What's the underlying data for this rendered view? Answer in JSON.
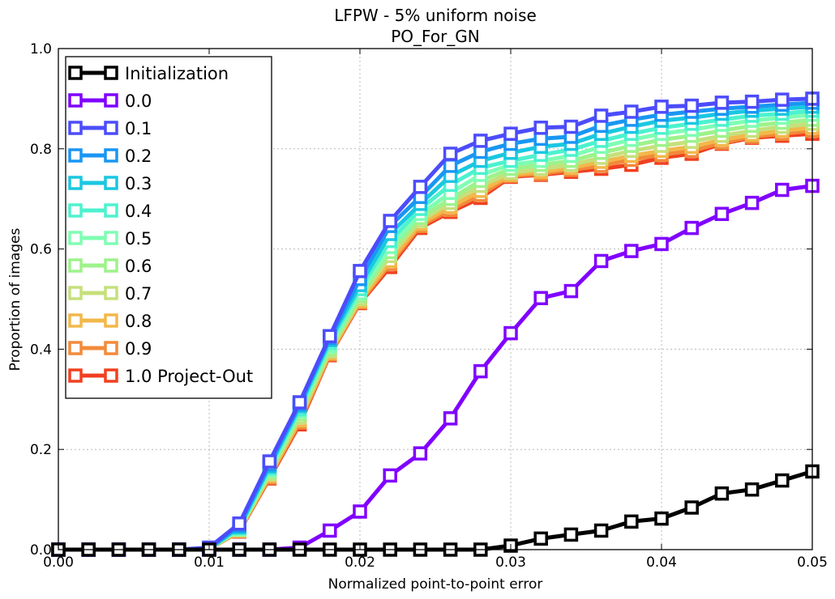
{
  "chart_data": {
    "type": "line",
    "title": "LFPW - 5% uniform noise",
    "subtitle": "PO_For_GN",
    "xlabel": "Normalized point-to-point error",
    "ylabel": "Proportion of images",
    "xlim": [
      0,
      0.05
    ],
    "ylim": [
      0,
      1.0
    ],
    "grid": true,
    "legend_position": "upper-left",
    "x_ticks": [
      "0.00",
      "0.01",
      "0.02",
      "0.03",
      "0.04",
      "0.05"
    ],
    "y_ticks": [
      "0.0",
      "0.2",
      "0.4",
      "0.6",
      "0.8",
      "1.0"
    ],
    "x": [
      0,
      0.002,
      0.004,
      0.006,
      0.008,
      0.01,
      0.012,
      0.014,
      0.016,
      0.018,
      0.02,
      0.022,
      0.024,
      0.026,
      0.028,
      0.03,
      0.032,
      0.034,
      0.036,
      0.038,
      0.04,
      0.042,
      0.044,
      0.046,
      0.048,
      0.05
    ],
    "series": [
      {
        "name": "Initialization",
        "color": "#000000",
        "values": [
          0,
          0,
          0,
          0,
          0,
          0,
          0,
          0,
          0,
          0,
          0,
          0,
          0,
          0,
          0,
          0.008,
          0.022,
          0.03,
          0.038,
          0.056,
          0.062,
          0.084,
          0.112,
          0.12,
          0.138,
          0.156
        ]
      },
      {
        "name": "0.0",
        "color": "#8000ff",
        "values": [
          0,
          0,
          0,
          0,
          0,
          0,
          0,
          0,
          0.004,
          0.038,
          0.076,
          0.148,
          0.192,
          0.262,
          0.356,
          0.432,
          0.502,
          0.516,
          0.576,
          0.596,
          0.61,
          0.642,
          0.67,
          0.692,
          0.718,
          0.726
        ]
      },
      {
        "name": "0.1",
        "color": "#4c4cfb",
        "values": [
          0,
          0,
          0,
          0,
          0,
          0.004,
          0.052,
          0.176,
          0.294,
          0.426,
          0.556,
          0.656,
          0.724,
          0.79,
          0.816,
          0.83,
          0.842,
          0.844,
          0.866,
          0.874,
          0.884,
          0.886,
          0.892,
          0.894,
          0.898,
          0.9
        ]
      },
      {
        "name": "0.2",
        "color": "#1996f3",
        "values": [
          0,
          0,
          0,
          0,
          0,
          0.003,
          0.048,
          0.17,
          0.29,
          0.422,
          0.54,
          0.646,
          0.704,
          0.766,
          0.794,
          0.81,
          0.82,
          0.824,
          0.846,
          0.858,
          0.868,
          0.874,
          0.88,
          0.884,
          0.888,
          0.892
        ]
      },
      {
        "name": "0.3",
        "color": "#1ac7e1",
        "values": [
          0,
          0,
          0,
          0,
          0,
          0.002,
          0.045,
          0.166,
          0.286,
          0.418,
          0.528,
          0.63,
          0.69,
          0.746,
          0.776,
          0.792,
          0.804,
          0.81,
          0.83,
          0.844,
          0.856,
          0.862,
          0.87,
          0.876,
          0.88,
          0.884
        ]
      },
      {
        "name": "0.4",
        "color": "#4cf2ce",
        "values": [
          0,
          0,
          0,
          0,
          0,
          0.002,
          0.043,
          0.162,
          0.28,
          0.412,
          0.52,
          0.616,
          0.68,
          0.728,
          0.762,
          0.776,
          0.788,
          0.798,
          0.816,
          0.83,
          0.842,
          0.85,
          0.858,
          0.866,
          0.87,
          0.876
        ]
      },
      {
        "name": "0.5",
        "color": "#7ffeb3",
        "values": [
          0,
          0,
          0,
          0,
          0,
          0.002,
          0.041,
          0.158,
          0.276,
          0.406,
          0.512,
          0.604,
          0.67,
          0.712,
          0.748,
          0.768,
          0.776,
          0.786,
          0.804,
          0.818,
          0.83,
          0.838,
          0.848,
          0.856,
          0.862,
          0.868
        ]
      },
      {
        "name": "0.6",
        "color": "#9ef28a",
        "values": [
          0,
          0,
          0,
          0,
          0,
          0.001,
          0.04,
          0.154,
          0.27,
          0.4,
          0.506,
          0.594,
          0.662,
          0.7,
          0.736,
          0.76,
          0.768,
          0.776,
          0.792,
          0.806,
          0.818,
          0.826,
          0.836,
          0.846,
          0.852,
          0.858
        ]
      },
      {
        "name": "0.7",
        "color": "#c6e07b",
        "values": [
          0,
          0,
          0,
          0,
          0,
          0.001,
          0.039,
          0.15,
          0.264,
          0.396,
          0.5,
          0.586,
          0.656,
          0.692,
          0.726,
          0.752,
          0.76,
          0.768,
          0.782,
          0.796,
          0.806,
          0.814,
          0.826,
          0.836,
          0.844,
          0.85
        ]
      },
      {
        "name": "0.8",
        "color": "#f2b84a",
        "values": [
          0,
          0,
          0,
          0,
          0,
          0.001,
          0.038,
          0.147,
          0.258,
          0.392,
          0.496,
          0.576,
          0.65,
          0.684,
          0.716,
          0.748,
          0.754,
          0.762,
          0.774,
          0.786,
          0.796,
          0.804,
          0.818,
          0.828,
          0.836,
          0.842
        ]
      },
      {
        "name": "0.9",
        "color": "#f28a3a",
        "values": [
          0,
          0,
          0,
          0,
          0,
          0.001,
          0.037,
          0.144,
          0.254,
          0.39,
          0.494,
          0.57,
          0.646,
          0.678,
          0.708,
          0.746,
          0.75,
          0.758,
          0.766,
          0.778,
          0.788,
          0.796,
          0.812,
          0.824,
          0.83,
          0.836
        ]
      },
      {
        "name": "1.0 Project-Out",
        "color": "#f04020",
        "values": [
          0,
          0,
          0,
          0,
          0,
          0.001,
          0.036,
          0.142,
          0.25,
          0.388,
          0.492,
          0.564,
          0.642,
          0.674,
          0.702,
          0.744,
          0.748,
          0.754,
          0.76,
          0.768,
          0.782,
          0.79,
          0.81,
          0.822,
          0.826,
          0.83
        ]
      }
    ]
  }
}
